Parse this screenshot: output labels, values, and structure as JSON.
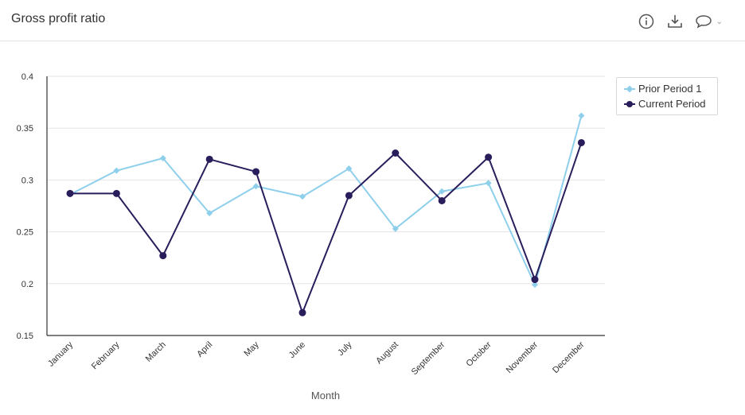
{
  "header": {
    "title": "Gross profit ratio",
    "icons": [
      "info-icon",
      "download-icon",
      "comment-icon",
      "chevron-down-icon"
    ]
  },
  "colors": {
    "prior": "#8ecfeb",
    "current": "#2a1d5c",
    "grid": "#e5e5e5",
    "axis": "#333333"
  },
  "chart_data": {
    "type": "line",
    "title": "",
    "xlabel": "Month",
    "ylabel": "",
    "categories": [
      "January",
      "February",
      "March",
      "April",
      "May",
      "June",
      "July",
      "August",
      "September",
      "October",
      "November",
      "December"
    ],
    "ylim": [
      0.15,
      0.4
    ],
    "yticks": [
      "0.4",
      "0.35",
      "0.3",
      "0.25",
      "0.2",
      "0.15"
    ],
    "ytick_values": [
      0.4,
      0.35,
      0.3,
      0.25,
      0.2,
      0.15
    ],
    "grid": true,
    "legend_position": "top-right",
    "series": [
      {
        "name": "Prior Period 1",
        "marker": "diamond",
        "values": [
          0.286,
          0.309,
          0.321,
          0.268,
          0.294,
          0.284,
          0.311,
          0.253,
          0.289,
          0.297,
          0.199,
          0.362
        ]
      },
      {
        "name": "Current Period",
        "marker": "circle",
        "values": [
          0.287,
          0.287,
          0.227,
          0.32,
          0.308,
          0.172,
          0.285,
          0.326,
          0.28,
          0.322,
          0.204,
          0.336
        ]
      }
    ]
  }
}
